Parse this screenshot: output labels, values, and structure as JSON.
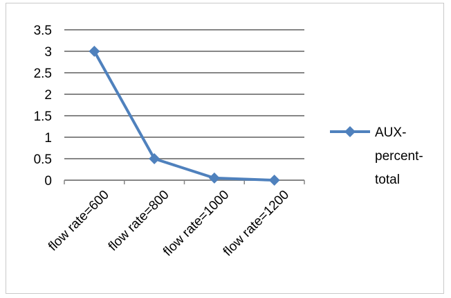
{
  "chart_data": {
    "type": "line",
    "title": "",
    "xlabel": "",
    "ylabel": "",
    "categories": [
      "flow rate=600",
      "flow rate=800",
      "flow rate=1000",
      "flow rate=1200"
    ],
    "series": [
      {
        "name": "AUX-percent-total",
        "legend_lines": [
          "AUX-",
          "percent-",
          "total"
        ],
        "values": [
          3.0,
          0.5,
          0.05,
          0.0
        ],
        "color": "#4f81bd",
        "marker": "diamond"
      }
    ],
    "ylim": [
      0,
      3.5
    ],
    "yticks": [
      0,
      0.5,
      1,
      1.5,
      2,
      2.5,
      3,
      3.5
    ],
    "ytick_labels": [
      "0",
      "0.5",
      "1",
      "1.5",
      "2",
      "2.5",
      "3",
      "3.5"
    ],
    "grid": true,
    "gridline_color": "#868686",
    "legend_position": "right"
  }
}
